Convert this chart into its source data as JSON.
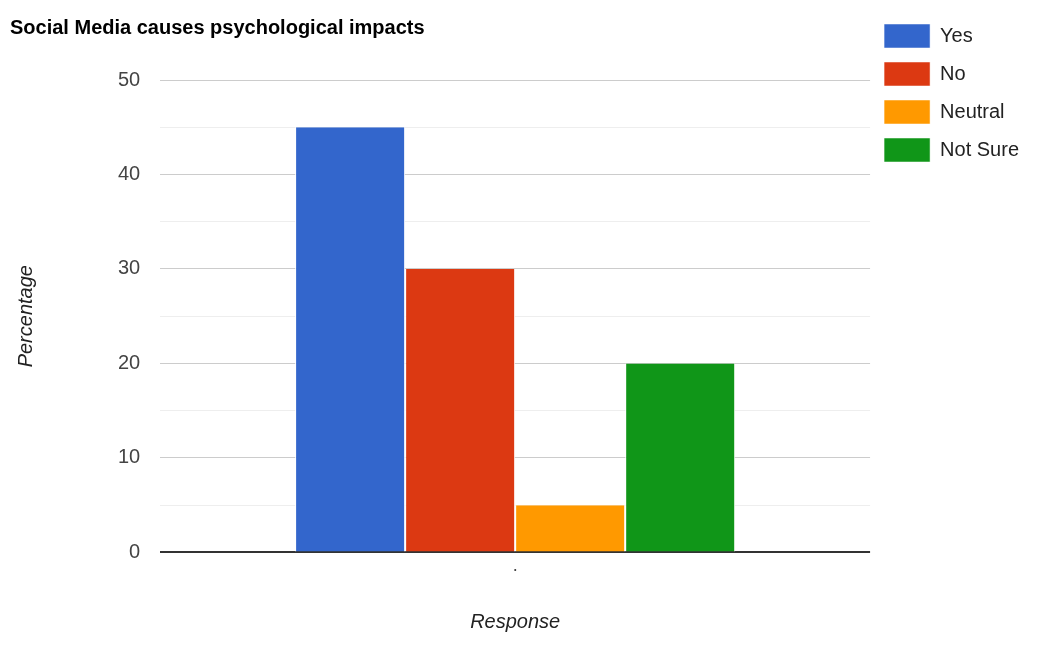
{
  "chart_data": {
    "type": "bar",
    "title": "Social Media causes psychological impacts",
    "xlabel": "Response",
    "ylabel": "Percentage",
    "categories": [
      "."
    ],
    "series": [
      {
        "name": "Yes",
        "color": "#3366cc",
        "values": [
          45
        ]
      },
      {
        "name": "No",
        "color": "#dc3912",
        "values": [
          30
        ]
      },
      {
        "name": "Neutral",
        "color": "#ff9900",
        "values": [
          5
        ]
      },
      {
        "name": "Not Sure",
        "color": "#109618",
        "values": [
          20
        ]
      }
    ],
    "ylim": [
      0,
      50
    ],
    "yticks": [
      0,
      {
        "value": 5,
        "label": null
      },
      10,
      {
        "value": 15,
        "label": null
      },
      20,
      {
        "value": 25,
        "label": null
      },
      30,
      {
        "value": 35,
        "label": null
      },
      40,
      {
        "value": 45,
        "label": null
      },
      50
    ],
    "grid": "y",
    "legend": "right"
  }
}
